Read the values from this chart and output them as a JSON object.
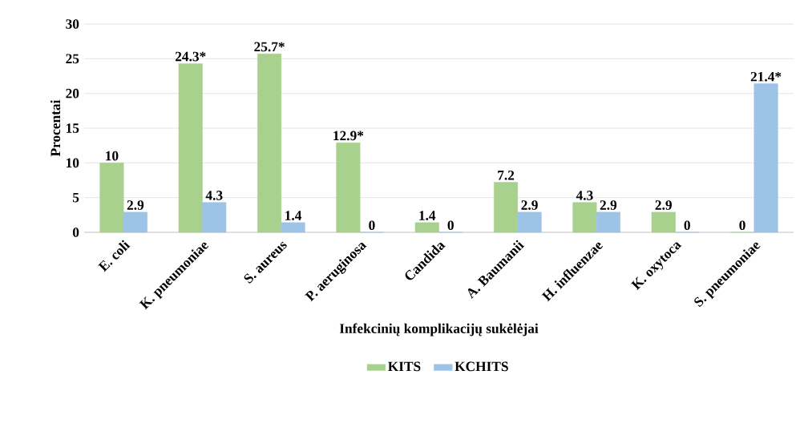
{
  "chart_data": {
    "type": "bar",
    "xlabel": "Infekcinių komplikacijų sukėlėjai",
    "ylabel": "Procentai",
    "categories": [
      "E. coli",
      "K. pneumoniae",
      "S. aureus",
      "P. aeruginosa",
      "Candida",
      "A. Baumanii",
      "H. influenzae",
      "K. oxytoca",
      "S. pneumoniae"
    ],
    "series": [
      {
        "name": "KITS",
        "color": "#a9d18e",
        "values": [
          10,
          24.3,
          25.7,
          12.9,
          1.4,
          7.2,
          4.3,
          2.9,
          0
        ],
        "value_labels": [
          "10",
          "24.3*",
          "25.7*",
          "12.9*",
          "1.4",
          "7.2",
          "4.3",
          "2.9",
          "0"
        ]
      },
      {
        "name": "KCHITS",
        "color": "#9dc3e6",
        "values": [
          2.9,
          4.3,
          1.4,
          0,
          0,
          2.9,
          2.9,
          0,
          21.4
        ],
        "value_labels": [
          "2.9",
          "4.3",
          "1.4",
          "0",
          "0",
          "2.9",
          "2.9",
          "0",
          "21.4*"
        ]
      }
    ],
    "ylim": [
      0,
      30
    ],
    "yticks": [
      0,
      5,
      10,
      15,
      20,
      25,
      30
    ],
    "grid": "y",
    "legend": "bottom"
  }
}
